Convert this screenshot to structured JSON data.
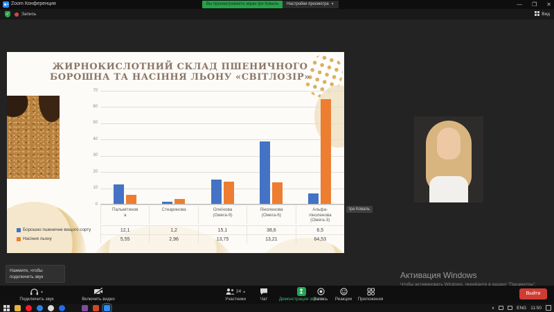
{
  "window": {
    "title": "Zoom Конференция",
    "banner": "Вы просматриваете экран Іри Коваль",
    "view_settings": "Настройки просмотра",
    "controls": {
      "minimize": "—",
      "maximize": "❐",
      "close": "✕"
    }
  },
  "menubar": {
    "recording_label": "Запись",
    "view_label": "Вид"
  },
  "slide": {
    "title_line1": "ЖИРНОКИСЛОТНИЙ СКЛАД ПШЕНИЧНОГО",
    "title_line2": "БОРОШНА ТА НАСІННЯ ЛЬОНУ «СВІТЛОЗІР»"
  },
  "chart_data": {
    "type": "bar",
    "title": "Жирнокислотний склад пшеничного борошна та насіння льону «Світлозір»",
    "categories": [
      "Пальмітинова",
      "Стеаринова",
      "Олеїнова (Омега-9)",
      "Ліноленова (Омега-6)",
      "Альфа-ліноленова (Омега-3)"
    ],
    "category_display": [
      [
        "Пальмітинов",
        "а"
      ],
      [
        "Стеаринова"
      ],
      [
        "Олеїнова",
        "(Омега-9)"
      ],
      [
        "Ліноленова",
        "(Омега-6)"
      ],
      [
        "Альфа-",
        "ліноленова",
        "(Омега-3)"
      ]
    ],
    "series": [
      {
        "name": "Борошно пшеничне вищого сорту",
        "color": "#4472c4",
        "values": [
          12.1,
          1.2,
          15.1,
          38.6,
          6.5
        ],
        "labels": [
          "12,1",
          "1,2",
          "15,1",
          "38,6",
          "6,5"
        ]
      },
      {
        "name": "Насіння льону",
        "color": "#ed7d31",
        "values": [
          5.55,
          2.96,
          13.75,
          13.21,
          64.53
        ],
        "labels": [
          "5,55",
          "2,96",
          "13,75",
          "13,21",
          "64,53"
        ]
      }
    ],
    "ylim": [
      0,
      70
    ],
    "yticks": [
      0,
      10,
      20,
      30,
      40,
      50,
      60,
      70
    ],
    "grid": true,
    "legend_position": "bottom-left table"
  },
  "presenter_tag": "Іра Коваль",
  "watermark": {
    "line1": "Активация Windows",
    "line2": "Чтобы активировать Windows, перейдите в раздел \"Параметры\"."
  },
  "tooltip": {
    "line1": "Нажмите, чтобы",
    "line2": "подключить звук"
  },
  "toolbar": {
    "join_audio": "Подключить звук",
    "start_video": "Включить видео",
    "participants": "Участники",
    "participants_count": "24",
    "chat": "Чат",
    "share": "Демонстрация экрана",
    "record": "Запись",
    "reactions": "Реакции",
    "apps": "Приложения",
    "leave": "Выйти"
  },
  "taskbar": {
    "apps": [
      {
        "name": "explorer",
        "color": "#e8b33c",
        "shape": "square"
      },
      {
        "name": "opera",
        "color": "#ff1b2d",
        "shape": "round"
      },
      {
        "name": "browser-blue",
        "color": "#2f7fe8",
        "shape": "round"
      },
      {
        "name": "app-light",
        "color": "#dcdcdc",
        "shape": "round"
      },
      {
        "name": "edge",
        "color": "#1f6feb",
        "shape": "round"
      },
      {
        "name": "gap",
        "color": "",
        "shape": "gap"
      },
      {
        "name": "viber",
        "color": "#7f4da0",
        "shape": "square"
      },
      {
        "name": "powerpoint",
        "color": "#d24726",
        "shape": "square"
      },
      {
        "name": "zoom-active",
        "color": "#2d8cff",
        "shape": "square",
        "active": true
      }
    ],
    "tray": {
      "lang": "ENG",
      "time": "11:50"
    }
  }
}
